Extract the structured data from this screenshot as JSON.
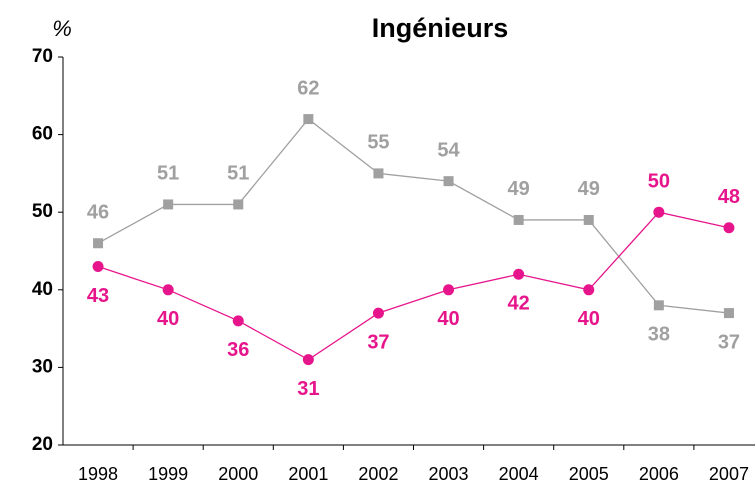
{
  "chart_data": {
    "type": "line",
    "title": "Ingénieurs",
    "y_label": "%",
    "categories": [
      "1998",
      "1999",
      "2000",
      "2001",
      "2002",
      "2003",
      "2004",
      "2005",
      "2006",
      "2007"
    ],
    "series": [
      {
        "color": "#a0a0a0",
        "marker": "square",
        "values": [
          46,
          51,
          51,
          62,
          55,
          54,
          49,
          49,
          38,
          37
        ]
      },
      {
        "color": "#e6158c",
        "marker": "circle",
        "values": [
          43,
          40,
          36,
          31,
          37,
          40,
          42,
          40,
          50,
          48
        ]
      }
    ],
    "ylim": [
      20,
      70
    ],
    "yticks": [
      20,
      30,
      40,
      50,
      60,
      70
    ],
    "grid": false
  }
}
